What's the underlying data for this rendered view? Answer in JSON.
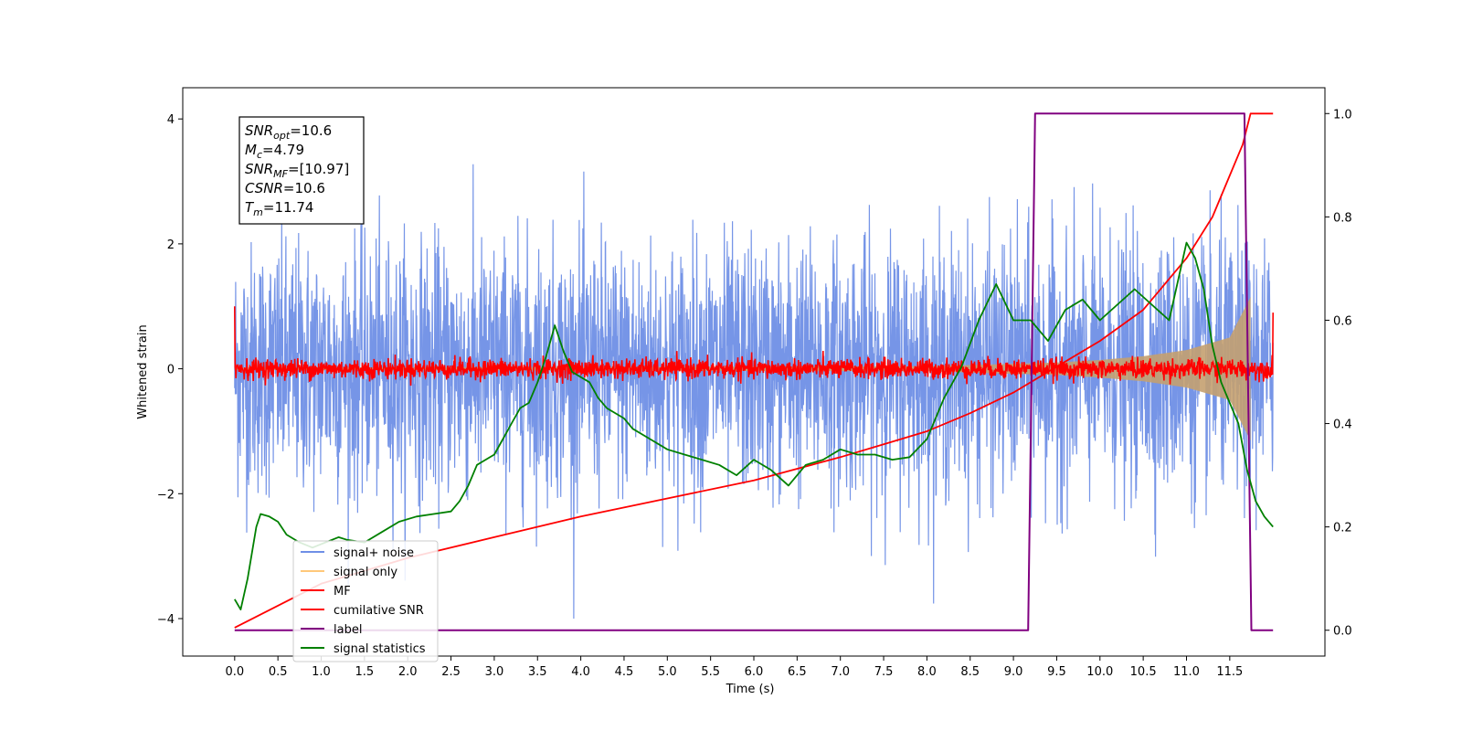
{
  "chart_data": {
    "type": "line",
    "xlabel": "Time (s)",
    "ylabel_left": "Whitened strain",
    "ylabel_right": "",
    "xlim": [
      -0.6,
      12.6
    ],
    "ylim_left": [
      -4.6,
      4.5
    ],
    "ylim_right": [
      -0.05,
      1.05
    ],
    "x_ticks": [
      0.0,
      0.5,
      1.0,
      1.5,
      2.0,
      2.5,
      3.0,
      3.5,
      4.0,
      4.5,
      5.0,
      5.5,
      6.0,
      6.5,
      7.0,
      7.5,
      8.0,
      8.5,
      9.0,
      9.5,
      10.0,
      10.5,
      11.0,
      11.5
    ],
    "x_tick_labels": [
      "0.0",
      "0.5",
      "1.0",
      "1.5",
      "2.0",
      "2.5",
      "3.0",
      "3.5",
      "4.0",
      "4.5",
      "5.0",
      "5.5",
      "6.0",
      "6.5",
      "7.0",
      "7.5",
      "8.0",
      "8.5",
      "9.0",
      "9.5",
      "10.0",
      "10.5",
      "11.0",
      "11.5"
    ],
    "y_ticks_left": [
      4,
      2,
      0,
      -2,
      -4
    ],
    "y_tick_labels_left": [
      "4",
      "2",
      "0",
      "−2",
      "−4"
    ],
    "y_ticks_right": [
      1.0,
      0.8,
      0.6,
      0.4,
      0.2,
      0.0
    ],
    "y_tick_labels_right": [
      "1.0",
      "0.8",
      "0.6",
      "0.4",
      "0.2",
      "0.0"
    ],
    "grid": false,
    "legend_position": "lower-left",
    "colors": {
      "signal_noise": "#6f8fe6",
      "signal_only": "#ffc87a",
      "mf": "#ff0000",
      "cumulative_snr": "#ff0000",
      "label": "#800080",
      "signal_statistics": "#008000",
      "envelope_fill": "#c4a070"
    },
    "legend": [
      {
        "name": "signal+ noise",
        "color": "#6f8fe6"
      },
      {
        "name": "signal only",
        "color": "#ffc87a"
      },
      {
        "name": "MF",
        "color": "#ff0000"
      },
      {
        "name": "cumilative SNR",
        "color": "#ff0000"
      },
      {
        "name": "label",
        "color": "#800080"
      },
      {
        "name": "signal statistics",
        "color": "#008000"
      }
    ],
    "annotation": [
      {
        "main": "SNR",
        "sub": "opt",
        "value": "=10.6"
      },
      {
        "main": "M",
        "sub": "c",
        "value": "=4.79"
      },
      {
        "main": "SNR",
        "sub": "MF",
        "value": "=[10.97]"
      },
      {
        "main": "CSNR",
        "sub": "",
        "value": "=10.6"
      },
      {
        "main": "T",
        "sub": "m",
        "value": "=11.74"
      }
    ],
    "series": [
      {
        "name": "signal+ noise",
        "axis": "left",
        "x_start": 0.0,
        "x_end": 12.0,
        "typical_amplitude": 1.0,
        "peak_amplitude": 4.0
      },
      {
        "name": "signal only",
        "axis": "left",
        "x": [
          0.0,
          8.0,
          8.5,
          9.0,
          9.5,
          10.0,
          10.5,
          11.0,
          11.5,
          11.74
        ],
        "envelope": [
          0.02,
          0.04,
          0.06,
          0.08,
          0.1,
          0.14,
          0.2,
          0.3,
          0.5,
          1.15
        ]
      },
      {
        "name": "MF",
        "axis": "left",
        "x_start": 0.0,
        "x_end": 12.0,
        "typical_amplitude": 0.1,
        "start_value": 1.0,
        "end_value": 0.9
      },
      {
        "name": "cumilative SNR",
        "axis": "right",
        "x": [
          0.0,
          1.0,
          2.0,
          3.0,
          4.0,
          5.0,
          6.0,
          7.0,
          7.5,
          8.0,
          8.5,
          9.0,
          9.5,
          10.0,
          10.5,
          11.0,
          11.3,
          11.5,
          11.65,
          11.74,
          12.0
        ],
        "y": [
          0.005,
          0.09,
          0.14,
          0.18,
          0.22,
          0.255,
          0.29,
          0.335,
          0.36,
          0.385,
          0.42,
          0.46,
          0.51,
          0.56,
          0.62,
          0.72,
          0.8,
          0.88,
          0.94,
          1.0,
          1.0
        ]
      },
      {
        "name": "label",
        "axis": "right",
        "x": [
          0.0,
          9.17,
          9.25,
          11.67,
          11.75,
          12.0
        ],
        "y": [
          0.0,
          0.0,
          1.0,
          1.0,
          0.0,
          0.0
        ]
      },
      {
        "name": "signal statistics",
        "axis": "right",
        "x": [
          0.0,
          0.07,
          0.15,
          0.25,
          0.3,
          0.4,
          0.5,
          0.6,
          0.75,
          0.9,
          1.05,
          1.2,
          1.3,
          1.5,
          1.7,
          1.9,
          2.1,
          2.3,
          2.5,
          2.6,
          2.7,
          2.8,
          3.0,
          3.1,
          3.2,
          3.3,
          3.4,
          3.5,
          3.6,
          3.7,
          3.8,
          3.9,
          4.0,
          4.1,
          4.2,
          4.3,
          4.5,
          4.6,
          4.8,
          5.0,
          5.2,
          5.4,
          5.6,
          5.8,
          6.0,
          6.2,
          6.4,
          6.6,
          6.8,
          7.0,
          7.2,
          7.4,
          7.6,
          7.8,
          8.0,
          8.2,
          8.4,
          8.6,
          8.8,
          9.0,
          9.2,
          9.4,
          9.6,
          9.8,
          10.0,
          10.2,
          10.4,
          10.6,
          10.8,
          11.0,
          11.1,
          11.2,
          11.3,
          11.4,
          11.5,
          11.6,
          11.7,
          11.8,
          11.9,
          12.0
        ],
        "y": [
          0.06,
          0.04,
          0.1,
          0.2,
          0.225,
          0.22,
          0.21,
          0.185,
          0.17,
          0.16,
          0.17,
          0.18,
          0.175,
          0.17,
          0.19,
          0.21,
          0.22,
          0.225,
          0.23,
          0.25,
          0.28,
          0.32,
          0.34,
          0.37,
          0.4,
          0.43,
          0.44,
          0.48,
          0.53,
          0.59,
          0.54,
          0.5,
          0.49,
          0.48,
          0.45,
          0.43,
          0.41,
          0.39,
          0.37,
          0.35,
          0.34,
          0.33,
          0.32,
          0.3,
          0.33,
          0.31,
          0.28,
          0.32,
          0.33,
          0.35,
          0.34,
          0.34,
          0.33,
          0.335,
          0.37,
          0.45,
          0.51,
          0.6,
          0.67,
          0.6,
          0.6,
          0.56,
          0.62,
          0.64,
          0.6,
          0.63,
          0.66,
          0.63,
          0.6,
          0.75,
          0.72,
          0.66,
          0.55,
          0.48,
          0.44,
          0.4,
          0.31,
          0.25,
          0.22,
          0.2
        ]
      }
    ]
  }
}
